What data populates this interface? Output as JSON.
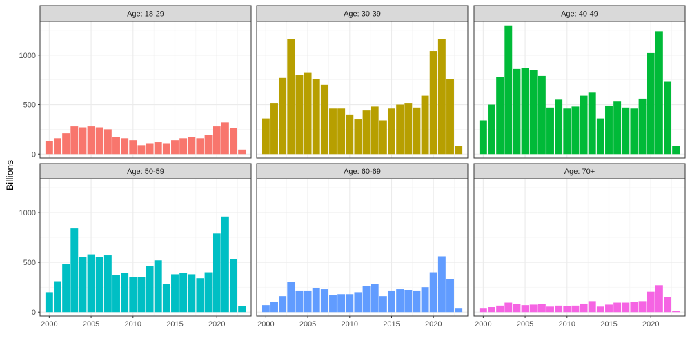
{
  "chart_data": {
    "type": "bar",
    "ylabel": "Billions",
    "xlabel": "",
    "ylim": [
      -40,
      1340
    ],
    "xlim": [
      1998.9,
      2024.1
    ],
    "yticks": [
      0,
      500,
      1000
    ],
    "xticks": [
      2000,
      2005,
      2010,
      2015,
      2020
    ],
    "grid": true,
    "legend": "none",
    "x": [
      2000,
      2001,
      2002,
      2003,
      2004,
      2005,
      2006,
      2007,
      2008,
      2009,
      2010,
      2011,
      2012,
      2013,
      2014,
      2015,
      2016,
      2017,
      2018,
      2019,
      2020,
      2021,
      2022,
      2023
    ],
    "panels": [
      {
        "name": "Age: 18-29",
        "color": "#F8766D",
        "values": [
          130,
          160,
          210,
          280,
          270,
          280,
          270,
          250,
          170,
          160,
          140,
          90,
          110,
          120,
          110,
          140,
          160,
          170,
          160,
          190,
          280,
          320,
          260,
          45
        ]
      },
      {
        "name": "Age: 30-39",
        "color": "#B79F00",
        "values": [
          360,
          510,
          770,
          1160,
          800,
          820,
          760,
          700,
          460,
          460,
          400,
          350,
          440,
          480,
          340,
          460,
          500,
          510,
          470,
          590,
          1040,
          1160,
          760,
          85
        ]
      },
      {
        "name": "Age: 40-49",
        "color": "#00BA38",
        "values": [
          340,
          500,
          780,
          1300,
          860,
          870,
          850,
          790,
          470,
          550,
          460,
          480,
          590,
          620,
          360,
          490,
          530,
          470,
          460,
          560,
          1020,
          1240,
          730,
          85
        ]
      },
      {
        "name": "Age: 50-59",
        "color": "#00BFC4",
        "values": [
          200,
          310,
          480,
          840,
          550,
          580,
          550,
          570,
          370,
          390,
          350,
          350,
          460,
          520,
          280,
          380,
          390,
          380,
          340,
          400,
          790,
          960,
          530,
          60
        ]
      },
      {
        "name": "Age: 60-69",
        "color": "#619CFF",
        "values": [
          70,
          100,
          160,
          300,
          210,
          210,
          240,
          230,
          170,
          180,
          180,
          200,
          260,
          280,
          160,
          210,
          230,
          220,
          210,
          250,
          400,
          560,
          330,
          35
        ]
      },
      {
        "name": "Age: 70+",
        "color": "#F564E3",
        "values": [
          35,
          50,
          65,
          95,
          80,
          70,
          75,
          80,
          55,
          65,
          60,
          65,
          85,
          110,
          55,
          75,
          95,
          95,
          100,
          110,
          205,
          270,
          150,
          15
        ]
      }
    ]
  }
}
